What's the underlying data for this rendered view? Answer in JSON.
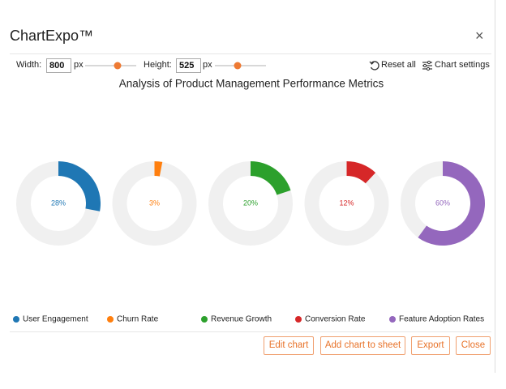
{
  "header": {
    "title": "ChartExpo™",
    "close": "×"
  },
  "controls": {
    "width_label": "Width:",
    "width_value": "800",
    "width_unit": "px",
    "height_label": "Height:",
    "height_value": "525",
    "height_unit": "px",
    "reset": "Reset all",
    "settings": "Chart settings"
  },
  "chart_data": {
    "type": "donut",
    "title": "Analysis of Product Management Performance Metrics",
    "categories": [
      "User Engagement",
      "Churn Rate",
      "Revenue Growth",
      "Conversion Rate",
      "Feature Adoption Rates"
    ],
    "values": [
      28,
      3,
      20,
      12,
      60
    ],
    "value_labels": [
      "28%",
      "3%",
      "20%",
      "12%",
      "60%"
    ],
    "colors": [
      "#1f77b4",
      "#ff7f0e",
      "#2ca02c",
      "#d62728",
      "#9467bd"
    ],
    "track_color": "#f0f0f0"
  },
  "buttons": [
    "Edit chart",
    "Add chart to sheet",
    "Export",
    "Close"
  ]
}
